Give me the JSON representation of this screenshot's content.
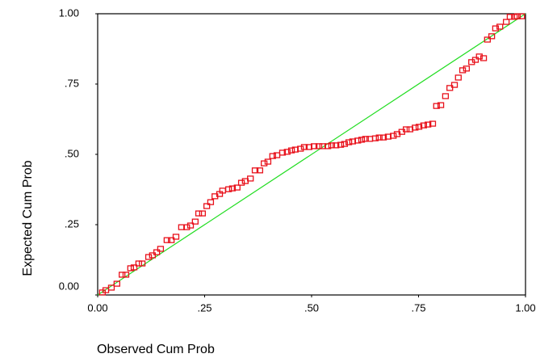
{
  "chart_data": {
    "type": "scatter",
    "x_label": "Observed Cum Prob",
    "y_label": "Expected Cum Prob",
    "xlim": [
      0,
      1
    ],
    "ylim": [
      0,
      1
    ],
    "xticks": [
      {
        "value": 0,
        "label": "0.00"
      },
      {
        "value": 0.25,
        "label": ".25"
      },
      {
        "value": 0.5,
        "label": ".50"
      },
      {
        "value": 0.75,
        "label": ".75"
      },
      {
        "value": 1,
        "label": "1.00"
      }
    ],
    "yticks": [
      {
        "value": 0,
        "label": "0.00"
      },
      {
        "value": 0.25,
        "label": ".25"
      },
      {
        "value": 0.5,
        "label": ".50"
      },
      {
        "value": 0.75,
        "label": ".75"
      },
      {
        "value": 1,
        "label": "1.00"
      }
    ],
    "color": "#e8101a",
    "reference_line_color": "#22dd22",
    "x": [
      0.011,
      0.019,
      0.032,
      0.045,
      0.057,
      0.066,
      0.077,
      0.085,
      0.096,
      0.104,
      0.119,
      0.128,
      0.138,
      0.147,
      0.162,
      0.172,
      0.183,
      0.196,
      0.208,
      0.217,
      0.228,
      0.236,
      0.245,
      0.255,
      0.264,
      0.274,
      0.285,
      0.292,
      0.306,
      0.315,
      0.326,
      0.336,
      0.345,
      0.357,
      0.368,
      0.379,
      0.389,
      0.398,
      0.409,
      0.419,
      0.432,
      0.443,
      0.453,
      0.462,
      0.474,
      0.483,
      0.494,
      0.506,
      0.517,
      0.526,
      0.538,
      0.547,
      0.557,
      0.568,
      0.577,
      0.587,
      0.596,
      0.608,
      0.617,
      0.626,
      0.636,
      0.649,
      0.658,
      0.668,
      0.679,
      0.691,
      0.7,
      0.711,
      0.721,
      0.73,
      0.742,
      0.751,
      0.762,
      0.772,
      0.783,
      0.792,
      0.802,
      0.813,
      0.823,
      0.834,
      0.843,
      0.853,
      0.862,
      0.874,
      0.883,
      0.892,
      0.902,
      0.911,
      0.921,
      0.93,
      0.94,
      0.955,
      0.964,
      0.974,
      0.981,
      0.991
    ],
    "values": [
      0.009,
      0.017,
      0.026,
      0.04,
      0.072,
      0.072,
      0.095,
      0.098,
      0.112,
      0.112,
      0.135,
      0.141,
      0.152,
      0.164,
      0.195,
      0.195,
      0.207,
      0.241,
      0.241,
      0.247,
      0.261,
      0.29,
      0.29,
      0.316,
      0.33,
      0.351,
      0.359,
      0.371,
      0.376,
      0.379,
      0.382,
      0.399,
      0.405,
      0.414,
      0.443,
      0.443,
      0.468,
      0.474,
      0.494,
      0.497,
      0.506,
      0.509,
      0.514,
      0.517,
      0.52,
      0.526,
      0.526,
      0.529,
      0.529,
      0.529,
      0.529,
      0.532,
      0.532,
      0.534,
      0.537,
      0.543,
      0.546,
      0.549,
      0.552,
      0.555,
      0.555,
      0.557,
      0.56,
      0.56,
      0.563,
      0.566,
      0.572,
      0.58,
      0.589,
      0.589,
      0.595,
      0.598,
      0.603,
      0.606,
      0.609,
      0.672,
      0.675,
      0.707,
      0.736,
      0.747,
      0.773,
      0.799,
      0.805,
      0.828,
      0.836,
      0.848,
      0.842,
      0.908,
      0.92,
      0.948,
      0.954,
      0.971,
      0.989,
      0.989,
      0.991,
      0.991
    ]
  }
}
